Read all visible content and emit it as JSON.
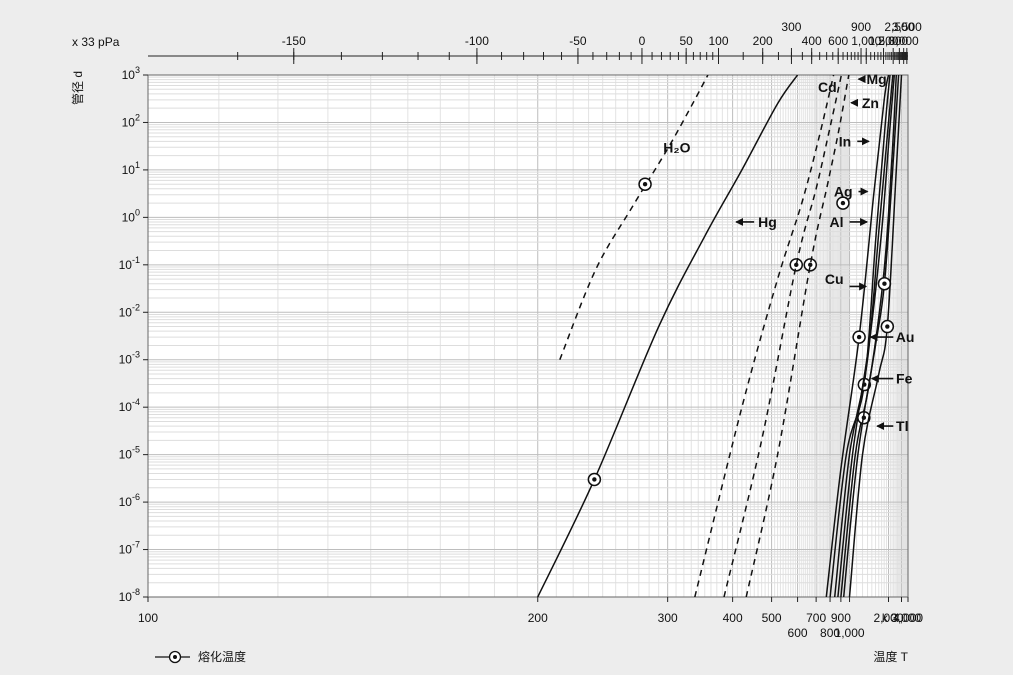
{
  "chart_data": {
    "type": "line",
    "title": "",
    "xlabel": "温度 T",
    "ylabel": "管径 d",
    "top_axis_unit": "x 33 pPa",
    "x_scale": "reciprocal",
    "y_scale": "log",
    "xlim": [
      100,
      4000
    ],
    "ylim": [
      1e-08,
      1000
    ],
    "grid": true,
    "legend": {
      "position": "bottom-left",
      "marker_label": "熔化温度"
    },
    "x_ticks_bottom": [
      {
        "value": 100,
        "label": "100",
        "row": 1
      },
      {
        "value": 200,
        "label": "200",
        "row": 1
      },
      {
        "value": 300,
        "label": "300",
        "row": 1
      },
      {
        "value": 400,
        "label": "400",
        "row": 1
      },
      {
        "value": 500,
        "label": "500",
        "row": 1
      },
      {
        "value": 600,
        "label": "600",
        "row": 2
      },
      {
        "value": 700,
        "label": "700",
        "row": 1
      },
      {
        "value": 800,
        "label": "800",
        "row": 2
      },
      {
        "value": 900,
        "label": "900",
        "row": 1
      },
      {
        "value": 1000,
        "label": "1,000",
        "row": 2
      },
      {
        "value": 2000,
        "label": "2,000",
        "row": 1
      },
      {
        "value": 3000,
        "label": "k 3,000",
        "row": 1
      },
      {
        "value": 4000,
        "label": "4,000",
        "row": 1
      }
    ],
    "x_ticks_top": [
      {
        "value": 123,
        "label": "-150",
        "row": 2
      },
      {
        "value": 173,
        "label": "-100",
        "row": 2
      },
      {
        "value": 223,
        "label": "-50",
        "row": 2
      },
      {
        "value": 273,
        "label": "0",
        "row": 2
      },
      {
        "value": 323,
        "label": "50",
        "row": 2
      },
      {
        "value": 373,
        "label": "100",
        "row": 2
      },
      {
        "value": 473,
        "label": "200",
        "row": 2
      },
      {
        "value": 573,
        "label": "300",
        "row": 1
      },
      {
        "value": 673,
        "label": "400",
        "row": 2
      },
      {
        "value": 873,
        "label": "600",
        "row": 2
      },
      {
        "value": 1173,
        "label": "900",
        "row": 1
      },
      {
        "value": 1273,
        "label": "1,000",
        "row": 2
      },
      {
        "value": 1773,
        "label": "1,500",
        "row": 2
      },
      {
        "value": 2273,
        "label": "2,000",
        "row": 2
      },
      {
        "value": 2773,
        "label": "2,500",
        "row": 1
      },
      {
        "value": 3273,
        "label": "3,000",
        "row": 2
      },
      {
        "value": 3773,
        "label": "3,500",
        "row": 1
      }
    ],
    "y_ticks": [
      {
        "value": 1000,
        "base": "10",
        "exp": "3"
      },
      {
        "value": 100,
        "base": "10",
        "exp": "2"
      },
      {
        "value": 10,
        "base": "10",
        "exp": "1"
      },
      {
        "value": 1,
        "base": "10",
        "exp": "0"
      },
      {
        "value": 0.1,
        "base": "10",
        "exp": "-1"
      },
      {
        "value": 0.01,
        "base": "10",
        "exp": "-2"
      },
      {
        "value": 0.001,
        "base": "10",
        "exp": "-3"
      },
      {
        "value": 0.0001,
        "base": "10",
        "exp": "-4"
      },
      {
        "value": 1e-05,
        "base": "10",
        "exp": "-5"
      },
      {
        "value": 1e-06,
        "base": "10",
        "exp": "-6"
      },
      {
        "value": 1e-07,
        "base": "10",
        "exp": "-7"
      },
      {
        "value": 1e-08,
        "base": "10",
        "exp": "-8"
      }
    ],
    "series": [
      {
        "name": "H₂O",
        "style": "dashed",
        "label_at": {
          "x": 295,
          "y": 30
        },
        "points": [
          [
            212,
            0.001
          ],
          [
            235,
            0.08
          ],
          [
            265,
            1.8
          ],
          [
            300,
            28
          ],
          [
            330,
            220
          ],
          [
            355,
            1000
          ]
        ],
        "marker": {
          "x": 276,
          "y": 5
        }
      },
      {
        "name": "Hg",
        "style": "solid",
        "label_at": {
          "x": 395,
          "y": 0.8
        },
        "points": [
          [
            200,
            1e-08
          ],
          [
            234,
            3e-06
          ],
          [
            290,
            0.005
          ],
          [
            350,
            0.4
          ],
          [
            420,
            10
          ],
          [
            520,
            250
          ],
          [
            600,
            1000
          ]
        ],
        "marker": {
          "x": 234,
          "y": 3e-06
        }
      },
      {
        "name": "",
        "style": "dashed",
        "points": [
          [
            335,
            1e-08
          ],
          [
            420,
            0.0001
          ],
          [
            520,
            0.05
          ],
          [
            620,
            2
          ],
          [
            720,
            50
          ],
          [
            830,
            1000
          ]
        ],
        "marker": {
          "x": 594,
          "y": 0.1
        }
      },
      {
        "name": "Cd",
        "style": "dashed",
        "label_at": {
          "x": 712,
          "y": 1000
        },
        "points": [
          [
            383,
            1e-08
          ],
          [
            470,
            2e-05
          ],
          [
            594,
            0.1
          ],
          [
            700,
            4
          ],
          [
            800,
            80
          ],
          [
            905,
            1000
          ]
        ],
        "marker": {
          "x": 665,
          "y": 0.1
        }
      },
      {
        "name": "",
        "style": "dashed",
        "points": [
          [
            430,
            1e-08
          ],
          [
            520,
            1e-05
          ],
          [
            665,
            0.1
          ],
          [
            780,
            5
          ],
          [
            880,
            70
          ],
          [
            990,
            1000
          ]
        ],
        "marker": {
          "x": 922,
          "y": 2
        }
      },
      {
        "name": "Zn",
        "style": "none",
        "label_at": {
          "x": 1125,
          "y": 200
        },
        "arrow": {
          "from_x": 1120,
          "to_x": 1020,
          "y": 260
        }
      },
      {
        "name": "Mg",
        "style": "none",
        "label_at": {
          "x": 1220,
          "y": 1000
        },
        "arrow": {
          "from_x": 1200,
          "to_x": 1130,
          "y": 820
        }
      },
      {
        "name": "In",
        "style": "solid",
        "label_at": {
          "x": 1000,
          "y": 40
        },
        "arrow": {
          "from_x": 1110,
          "to_x": 1330,
          "y": 40
        },
        "points": [
          [
            770,
            1e-08
          ],
          [
            900,
            5e-06
          ],
          [
            1140,
            0.003
          ],
          [
            1450,
            3
          ],
          [
            1800,
            300
          ],
          [
            2000,
            1000
          ]
        ],
        "marker": {
          "x": 1140,
          "y": 0.003
        }
      },
      {
        "name": "Ag",
        "style": "solid",
        "label_at": {
          "x": 1040,
          "y": 3.5
        },
        "arrow": {
          "from_x": 1130,
          "to_x": 1300,
          "y": 3.5
        },
        "points": [
          [
            800,
            1e-08
          ],
          [
            960,
            1e-05
          ],
          [
            1234,
            0.0003
          ],
          [
            1500,
            0.3
          ],
          [
            1850,
            100
          ],
          [
            2080,
            1000
          ]
        ],
        "marker": {
          "x": 1234,
          "y": 0.0003
        }
      },
      {
        "name": "Al",
        "style": "solid",
        "label_at": {
          "x": 935,
          "y": 0.8
        },
        "arrow": {
          "from_x": 1000,
          "to_x": 1290,
          "y": 0.8
        },
        "points": [
          [
            840,
            1e-08
          ],
          [
            1000,
            1e-05
          ],
          [
            1300,
            0.001
          ],
          [
            1600,
            0.5
          ],
          [
            2000,
            100
          ],
          [
            2250,
            1000
          ]
        ]
      },
      {
        "name": "Cu",
        "style": "solid",
        "label_at": {
          "x": 930,
          "y": 0.05
        },
        "arrow": {
          "from_x": 1000,
          "to_x": 1270,
          "y": 0.035
        },
        "points": [
          [
            870,
            1e-08
          ],
          [
            1040,
            1e-05
          ],
          [
            1357,
            0.003
          ],
          [
            1700,
            0.5
          ],
          [
            2050,
            60
          ],
          [
            2350,
            1000
          ]
        ]
      },
      {
        "name": "Au",
        "style": "solid",
        "label_at": {
          "x": 2460,
          "y": 0.003
        },
        "arrow": {
          "from_x": 2280,
          "to_x": 1370,
          "y": 0.003
        },
        "points": [
          [
            900,
            1e-08
          ],
          [
            1080,
            1e-05
          ],
          [
            1336,
            0.0003
          ],
          [
            1800,
            0.08
          ],
          [
            2200,
            20
          ],
          [
            2500,
            1000
          ]
        ],
        "marker": {
          "x": 1225,
          "y": 6e-05
        }
      },
      {
        "name": "Fe",
        "style": "solid",
        "label_at": {
          "x": 2480,
          "y": 0.0004
        },
        "arrow": {
          "from_x": 2280,
          "to_x": 1400,
          "y": 0.0004
        },
        "points": [
          [
            930,
            1e-08
          ],
          [
            1120,
            1e-05
          ],
          [
            1500,
            0.002
          ],
          [
            1811,
            0.04
          ],
          [
            2300,
            20
          ],
          [
            2700,
            1000
          ]
        ],
        "marker": {
          "x": 1811,
          "y": 0.04
        }
      },
      {
        "name": "Tl",
        "style": "solid",
        "label_at": {
          "x": 2480,
          "y": 4e-05
        },
        "arrow": {
          "from_x": 2280,
          "to_x": 1550,
          "y": 4e-05
        },
        "points": [
          [
            1000,
            1e-08
          ],
          [
            1200,
            1e-05
          ],
          [
            1600,
            0.0005
          ],
          [
            1941,
            0.005
          ],
          [
            2500,
            10
          ],
          [
            3000,
            1000
          ]
        ],
        "marker": {
          "x": 1941,
          "y": 0.005
        }
      }
    ]
  }
}
